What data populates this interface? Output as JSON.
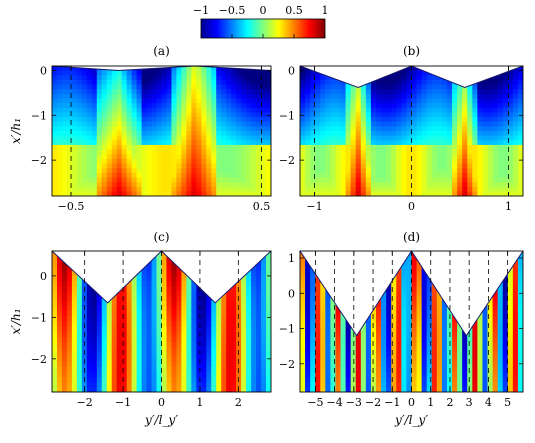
{
  "colorbar": {
    "ticks": [
      "−1",
      "−0.5",
      "0",
      "0.5",
      "1"
    ],
    "range": [
      -1,
      1
    ],
    "colormap": "jet"
  },
  "chart_data": [
    {
      "type": "heatmap",
      "panel": "(a)",
      "xlabel": "",
      "ylabel": "x′/h₁",
      "xlim": [
        -0.6,
        0.55
      ],
      "ylim": [
        -2.8,
        0.1
      ],
      "xticks": [
        -0.5,
        0.5
      ],
      "xticklabels": [
        "−0.5",
        "0.5"
      ],
      "yticks": [
        0,
        -1,
        -2
      ],
      "yticklabels": [
        "0",
        "−1",
        "−2"
      ],
      "dashed_lines_x": [
        -0.5,
        0.5
      ],
      "boundary": [
        [
          -0.6,
          0.1
        ],
        [
          -0.25,
          0.0
        ],
        [
          0.15,
          0.1
        ],
        [
          0.55,
          0.0
        ]
      ]
    },
    {
      "type": "heatmap",
      "panel": "(b)",
      "xlabel": "",
      "ylabel": "",
      "xlim": [
        -1.15,
        1.15
      ],
      "ylim": [
        -2.8,
        0.1
      ],
      "xticks": [
        -1,
        0,
        1
      ],
      "xticklabels": [
        "−1",
        "0",
        "1"
      ],
      "yticks": [
        0,
        -1,
        -2
      ],
      "yticklabels": [
        "0",
        "−1",
        "−2"
      ],
      "dashed_lines_x": [
        -1,
        0,
        1
      ],
      "boundary": [
        [
          -1.15,
          0.1
        ],
        [
          -0.55,
          -0.38
        ],
        [
          0.0,
          0.1
        ],
        [
          0.55,
          -0.38
        ],
        [
          1.15,
          0.1
        ]
      ]
    },
    {
      "type": "heatmap",
      "panel": "(c)",
      "xlabel": "y′/l_y′",
      "ylabel": "x′/h₁",
      "xlim": [
        -2.85,
        2.85
      ],
      "ylim": [
        -2.8,
        0.6
      ],
      "xticks": [
        -2,
        -1,
        0,
        1,
        2
      ],
      "xticklabels": [
        "−2",
        "−1",
        "0",
        "1",
        "2"
      ],
      "yticks": [
        0,
        -1,
        -2
      ],
      "yticklabels": [
        "0",
        "−1",
        "−2"
      ],
      "dashed_lines_x": [
        -2,
        -1,
        0,
        1,
        2
      ],
      "boundary": [
        [
          -2.85,
          0.6
        ],
        [
          -1.4,
          -0.65
        ],
        [
          0.0,
          0.6
        ],
        [
          1.4,
          -0.65
        ],
        [
          2.85,
          0.6
        ]
      ]
    },
    {
      "type": "heatmap",
      "panel": "(d)",
      "xlabel": "y′/l_y′",
      "ylabel": "",
      "xlim": [
        -5.8,
        5.8
      ],
      "ylim": [
        -2.8,
        1.2
      ],
      "xticks": [
        -5,
        -4,
        -3,
        -2,
        -1,
        0,
        1,
        2,
        3,
        4,
        5
      ],
      "xticklabels": [
        "−5",
        "−4",
        "−3",
        "−2",
        "−1",
        "0",
        "1",
        "2",
        "3",
        "4",
        "5"
      ],
      "yticks": [
        1,
        0,
        -1,
        -2
      ],
      "yticklabels": [
        "1",
        "0",
        "−1",
        "−2"
      ],
      "dashed_lines_x": [
        -5,
        -4,
        -3,
        -2,
        -1,
        0,
        1,
        2,
        3,
        4,
        5
      ],
      "boundary": [
        [
          -5.8,
          1.2
        ],
        [
          -2.85,
          -1.2
        ],
        [
          0.0,
          1.2
        ],
        [
          2.85,
          -1.2
        ],
        [
          5.8,
          1.2
        ]
      ]
    }
  ]
}
